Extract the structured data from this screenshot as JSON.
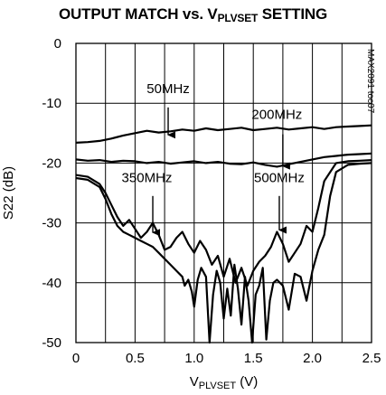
{
  "chart_data": {
    "type": "line",
    "title_main": "OUTPUT MATCH vs. V",
    "title_sub": "PLVSET",
    "title_end": " SETTING",
    "xlabel_main": "V",
    "xlabel_sub": "PLVSET",
    "xlabel_end": " (V)",
    "ylabel": "S22 (dB)",
    "xlim": [
      0,
      2.5
    ],
    "ylim": [
      -50,
      0
    ],
    "x_ticks": [
      "0",
      "0.5",
      "1.0",
      "1.5",
      "2.0",
      "2.5"
    ],
    "y_ticks": [
      "0",
      "-10",
      "-20",
      "-30",
      "-40",
      "-50"
    ],
    "grid": true,
    "figure_code": "MAX2091 toc07",
    "annotations": [
      {
        "label": "50MHz",
        "text_x": 0.78,
        "text_y": -8.3,
        "arrow_from": [
          0.78,
          -10.7
        ],
        "arrow_to": [
          0.78,
          -15.3
        ]
      },
      {
        "label": "200MHz",
        "text_x": 1.7,
        "text_y": -12.6,
        "arrow_from": [
          1.75,
          -15.2
        ],
        "arrow_to": [
          1.75,
          -20.5
        ]
      },
      {
        "label": "350MHz",
        "text_x": 0.6,
        "text_y": -23.2,
        "arrow_from": [
          0.65,
          -25.5
        ],
        "arrow_to": [
          0.65,
          -31.6
        ]
      },
      {
        "label": "500MHz",
        "text_x": 1.72,
        "text_y": -23.2,
        "arrow_from": [
          1.72,
          -25.5
        ],
        "arrow_to": [
          1.72,
          -31.2
        ]
      }
    ],
    "series": [
      {
        "x": [
          0,
          0.1,
          0.2,
          0.3,
          0.4,
          0.5,
          0.6,
          0.7,
          0.8,
          0.9,
          1.0,
          1.1,
          1.2,
          1.3,
          1.4,
          1.5,
          1.6,
          1.7,
          1.8,
          1.9,
          2.0,
          2.1,
          2.2,
          2.3,
          2.4,
          2.5
        ],
        "values": [
          -16.6,
          -16.5,
          -16.3,
          -15.9,
          -15.4,
          -15.0,
          -14.6,
          -14.9,
          -14.7,
          -14.4,
          -14.6,
          -14.2,
          -14.5,
          -14.3,
          -14.1,
          -14.5,
          -14.3,
          -14.1,
          -14.4,
          -14.2,
          -14.0,
          -14.3,
          -14.0,
          -13.9,
          -13.8,
          -13.7
        ]
      },
      {
        "x": [
          0,
          0.1,
          0.2,
          0.3,
          0.4,
          0.5,
          0.6,
          0.7,
          0.8,
          0.9,
          1.0,
          1.1,
          1.2,
          1.3,
          1.4,
          1.5,
          1.6,
          1.7,
          1.8,
          1.9,
          2.0,
          2.1,
          2.2,
          2.3,
          2.4,
          2.5
        ],
        "values": [
          -19.4,
          -19.6,
          -19.5,
          -19.8,
          -19.6,
          -19.7,
          -20.0,
          -19.8,
          -20.1,
          -19.9,
          -19.7,
          -20.0,
          -19.8,
          -20.1,
          -20.2,
          -19.9,
          -20.3,
          -20.6,
          -20.2,
          -19.8,
          -19.4,
          -19.0,
          -18.8,
          -18.6,
          -18.5,
          -18.4
        ]
      },
      {
        "x": [
          0,
          0.1,
          0.2,
          0.25,
          0.3,
          0.35,
          0.4,
          0.45,
          0.5,
          0.55,
          0.6,
          0.65,
          0.7,
          0.75,
          0.8,
          0.85,
          0.9,
          0.95,
          1.0,
          1.05,
          1.1,
          1.15,
          1.2,
          1.25,
          1.3,
          1.35,
          1.4,
          1.45,
          1.5,
          1.55,
          1.6,
          1.65,
          1.7,
          1.75,
          1.8,
          1.85,
          1.9,
          1.95,
          2.0,
          2.05,
          2.1,
          2.2,
          2.3,
          2.4,
          2.5
        ],
        "values": [
          -22.0,
          -22.3,
          -23.5,
          -25.0,
          -27.0,
          -29.0,
          -30.5,
          -29.5,
          -31.0,
          -32.5,
          -31.5,
          -30.0,
          -32.0,
          -34.5,
          -34.0,
          -32.5,
          -31.5,
          -33.5,
          -35.0,
          -33.0,
          -34.5,
          -37.0,
          -35.5,
          -39.0,
          -36.0,
          -40.0,
          -37.5,
          -40.5,
          -38.0,
          -36.5,
          -35.5,
          -34.0,
          -31.5,
          -33.5,
          -36.5,
          -35.0,
          -33.5,
          -30.5,
          -31.5,
          -27.5,
          -23.0,
          -20.0,
          -19.7,
          -19.6,
          -19.5
        ]
      },
      {
        "x": [
          0,
          0.1,
          0.2,
          0.25,
          0.3,
          0.35,
          0.4,
          0.45,
          0.5,
          0.55,
          0.6,
          0.65,
          0.7,
          0.75,
          0.8,
          0.85,
          0.9,
          0.92,
          0.95,
          0.98,
          1.0,
          1.03,
          1.06,
          1.1,
          1.13,
          1.16,
          1.19,
          1.22,
          1.25,
          1.28,
          1.31,
          1.34,
          1.37,
          1.4,
          1.43,
          1.46,
          1.49,
          1.52,
          1.55,
          1.58,
          1.61,
          1.64,
          1.67,
          1.7,
          1.75,
          1.8,
          1.85,
          1.9,
          1.95,
          2.0,
          2.05,
          2.1,
          2.15,
          2.2,
          2.3,
          2.4,
          2.5
        ],
        "values": [
          -22.5,
          -22.8,
          -24.0,
          -26.0,
          -28.5,
          -30.5,
          -31.5,
          -32.0,
          -32.5,
          -33.0,
          -33.5,
          -34.0,
          -35.0,
          -36.0,
          -37.0,
          -38.0,
          -39.0,
          -40.5,
          -39.5,
          -41.5,
          -44.0,
          -39.5,
          -37.5,
          -39.0,
          -50.0,
          -42.0,
          -38.0,
          -40.0,
          -46.0,
          -41.0,
          -45.5,
          -37.0,
          -41.0,
          -47.0,
          -39.0,
          -43.0,
          -50.0,
          -42.0,
          -40.5,
          -37.5,
          -49.5,
          -43.0,
          -40.0,
          -39.5,
          -40.5,
          -44.5,
          -38.5,
          -39.0,
          -43.0,
          -38.0,
          -34.5,
          -32.0,
          -25.5,
          -21.5,
          -20.3,
          -20.1,
          -20.0
        ]
      }
    ]
  }
}
